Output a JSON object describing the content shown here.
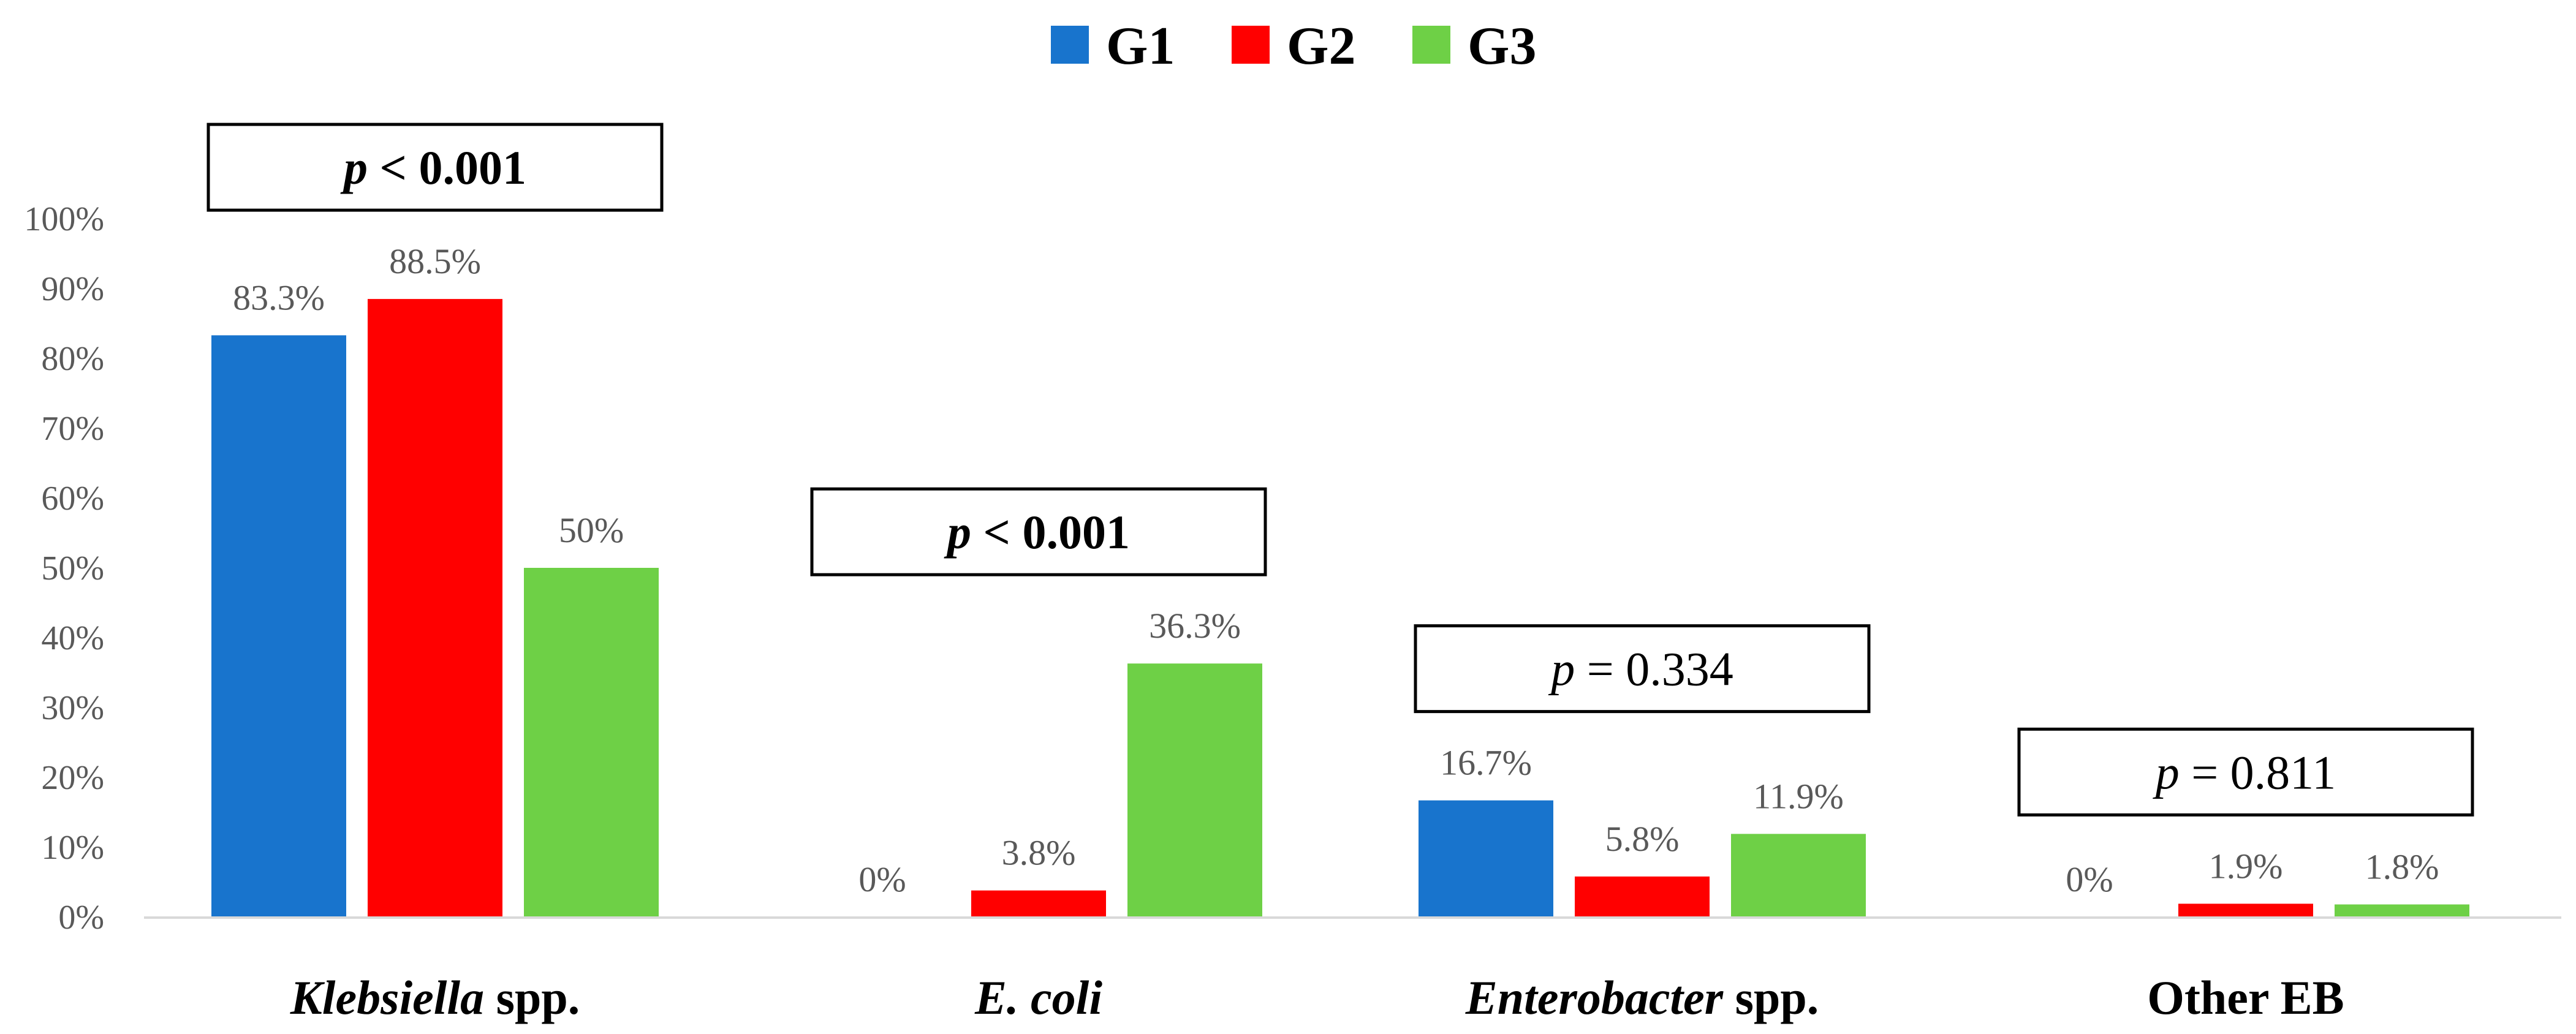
{
  "chart_data": {
    "type": "bar",
    "categories": [
      {
        "label": "Klebsiella spp.",
        "parts": [
          {
            "text": "Klebsiella",
            "italic": true
          },
          {
            "text": " spp.",
            "italic": false
          }
        ]
      },
      {
        "label": "E. coli",
        "parts": [
          {
            "text": "E. coli",
            "italic": true
          }
        ]
      },
      {
        "label": "Enterobacter spp.",
        "parts": [
          {
            "text": "Enterobacter",
            "italic": true
          },
          {
            "text": " spp.",
            "italic": false
          }
        ]
      },
      {
        "label": "Other EB",
        "parts": [
          {
            "text": "Other EB",
            "italic": false
          }
        ]
      }
    ],
    "series": [
      {
        "name": "G1",
        "color": "#1874CD",
        "values": [
          83.3,
          0,
          16.7,
          0
        ],
        "labels": [
          "83.3%",
          "0%",
          "16.7%",
          "0%"
        ]
      },
      {
        "name": "G2",
        "color": "#FF0000",
        "values": [
          88.5,
          3.8,
          5.8,
          1.9
        ],
        "labels": [
          "88.5%",
          "3.8%",
          "5.8%",
          "1.9%"
        ]
      },
      {
        "name": "G3",
        "color": "#6ED046",
        "values": [
          50,
          36.3,
          11.9,
          1.8
        ],
        "labels": [
          "50%",
          "36.3%",
          "11.9%",
          "1.8%"
        ]
      }
    ],
    "y_ticks": [
      "0%",
      "10%",
      "20%",
      "30%",
      "40%",
      "50%",
      "60%",
      "70%",
      "80%",
      "90%",
      "100%"
    ],
    "ylim": [
      0,
      100
    ],
    "legend_position": "top-center",
    "annotations": [
      {
        "category": "Klebsiella spp.",
        "p_symbol": "p",
        "operator": " < ",
        "value": "0.001",
        "bold": true
      },
      {
        "category": "E. coli",
        "p_symbol": "p",
        "operator": " < ",
        "value": "0.001",
        "bold": true
      },
      {
        "category": "Enterobacter spp.",
        "p_symbol": "p",
        "operator": " = ",
        "value": "0.334",
        "bold": false
      },
      {
        "category": "Other EB",
        "p_symbol": "p",
        "operator": " = ",
        "value": "0.811",
        "bold": false
      }
    ]
  }
}
